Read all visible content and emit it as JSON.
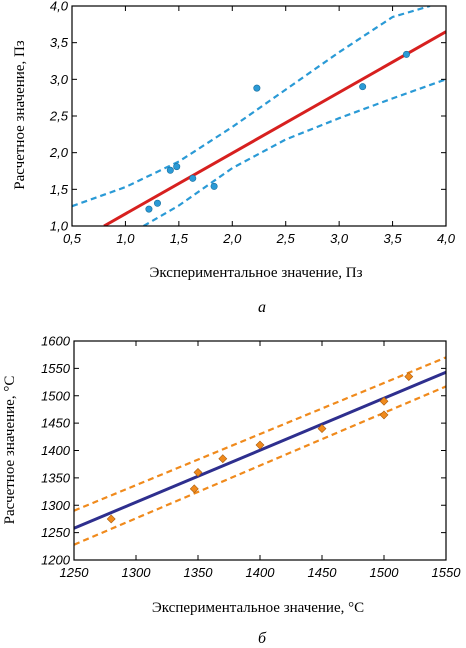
{
  "chart_data": [
    {
      "type": "scatter",
      "panel_label": "а",
      "xlabel": "Экспериментальное значение, Пз",
      "ylabel": "Расчетное значение, Пз",
      "xlim": [
        0.5,
        4.0
      ],
      "ylim": [
        1.0,
        4.0
      ],
      "xticks": [
        0.5,
        1.0,
        1.5,
        2.0,
        2.5,
        3.0,
        3.5,
        4.0
      ],
      "yticks": [
        1.0,
        1.5,
        2.0,
        2.5,
        3.0,
        3.5,
        4.0
      ],
      "xtick_labels": [
        "0,5",
        "1,0",
        "1,5",
        "2,0",
        "2,5",
        "3,0",
        "3,5",
        "4,0"
      ],
      "ytick_labels": [
        "1,0",
        "1,5",
        "2,0",
        "2,5",
        "3,0",
        "3,5",
        "4,0"
      ],
      "grid": false,
      "colors": {
        "points": "#2a9ad6",
        "fit": "#d7201f",
        "bounds": "#2a9ad6"
      },
      "points": {
        "x": [
          1.22,
          1.3,
          1.42,
          1.48,
          1.63,
          1.83,
          2.23,
          3.22,
          3.63
        ],
        "y": [
          1.23,
          1.31,
          1.76,
          1.81,
          1.65,
          1.54,
          2.88,
          2.9,
          3.34
        ]
      },
      "fit_line": {
        "x": [
          0.8,
          4.0
        ],
        "y": [
          1.0,
          3.65
        ]
      },
      "upper_bound": {
        "x": [
          0.5,
          1.0,
          1.5,
          2.0,
          2.5,
          3.0,
          3.5,
          3.85
        ],
        "y": [
          1.27,
          1.53,
          1.88,
          2.35,
          2.86,
          3.37,
          3.85,
          4.0
        ]
      },
      "lower_bound": {
        "x": [
          1.17,
          1.5,
          2.0,
          2.5,
          3.0,
          3.5,
          4.0
        ],
        "y": [
          1.0,
          1.28,
          1.79,
          2.18,
          2.47,
          2.74,
          3.0
        ]
      }
    },
    {
      "type": "scatter",
      "panel_label": "б",
      "xlabel": "Экспериментальное значение, °С",
      "ylabel": "Расчетное значение, °С",
      "xlim": [
        1250,
        1550
      ],
      "ylim": [
        1200,
        1600
      ],
      "xticks": [
        1250,
        1300,
        1350,
        1400,
        1450,
        1500,
        1550
      ],
      "yticks": [
        1200,
        1250,
        1300,
        1350,
        1400,
        1450,
        1500,
        1550,
        1600
      ],
      "xtick_labels": [
        "1250",
        "1300",
        "1350",
        "1400",
        "1450",
        "1500",
        "1550"
      ],
      "ytick_labels": [
        "1200",
        "1250",
        "1300",
        "1350",
        "1400",
        "1450",
        "1500",
        "1550",
        "1600"
      ],
      "grid": false,
      "colors": {
        "points": "#f08a1c",
        "fit": "#2e2f8e",
        "bounds": "#f08a1c"
      },
      "points": {
        "x": [
          1280,
          1347,
          1350,
          1370,
          1400,
          1450,
          1500,
          1500,
          1520
        ],
        "y": [
          1275,
          1330,
          1360,
          1385,
          1410,
          1440,
          1465,
          1490,
          1535
        ]
      },
      "fit_line": {
        "x": [
          1250,
          1550
        ],
        "y": [
          1258,
          1543
        ]
      },
      "upper_bound": {
        "x": [
          1250,
          1550
        ],
        "y": [
          1290,
          1570
        ]
      },
      "lower_bound": {
        "x": [
          1250,
          1550
        ],
        "y": [
          1228,
          1517
        ]
      }
    }
  ]
}
